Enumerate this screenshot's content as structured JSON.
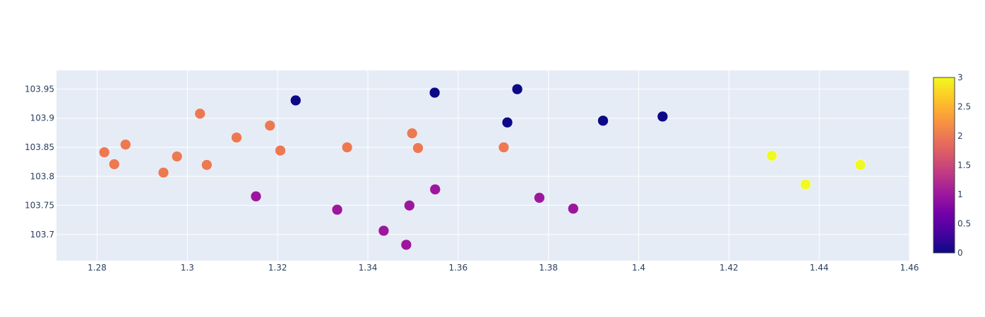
{
  "chart_data": {
    "type": "scatter",
    "xlim": [
      1.271,
      1.46
    ],
    "ylim": [
      103.655,
      103.982
    ],
    "grid": true,
    "x_ticks": [
      "1.28",
      "1.3",
      "1.32",
      "1.34",
      "1.36",
      "1.38",
      "1.4",
      "1.42",
      "1.44",
      "1.46"
    ],
    "y_ticks": [
      "103.7",
      "103.75",
      "103.8",
      "103.85",
      "103.9",
      "103.95"
    ],
    "colorbar": {
      "range": [
        0,
        3
      ],
      "ticks": [
        "0",
        "0.5",
        "1",
        "1.5",
        "2",
        "2.5",
        "3"
      ],
      "colorscale": [
        "#0d0887",
        "#46039f",
        "#7201a8",
        "#9c179e",
        "#bd3786",
        "#d8576b",
        "#ed7953",
        "#fb9f3a",
        "#fdca26",
        "#f0f921"
      ]
    },
    "points": [
      {
        "x": 1.2816,
        "y": 103.8413,
        "c": 2
      },
      {
        "x": 1.2838,
        "y": 103.8208,
        "c": 2
      },
      {
        "x": 1.2863,
        "y": 103.8546,
        "c": 2
      },
      {
        "x": 1.2947,
        "y": 103.8064,
        "c": 2
      },
      {
        "x": 1.2977,
        "y": 103.8341,
        "c": 2
      },
      {
        "x": 1.3028,
        "y": 103.9077,
        "c": 2
      },
      {
        "x": 1.3043,
        "y": 103.8196,
        "c": 2
      },
      {
        "x": 1.3109,
        "y": 103.8667,
        "c": 2
      },
      {
        "x": 1.3183,
        "y": 103.8872,
        "c": 2
      },
      {
        "x": 1.3206,
        "y": 103.8443,
        "c": 2
      },
      {
        "x": 1.3354,
        "y": 103.8498,
        "c": 2
      },
      {
        "x": 1.3498,
        "y": 103.8739,
        "c": 2
      },
      {
        "x": 1.3511,
        "y": 103.8486,
        "c": 2
      },
      {
        "x": 1.3701,
        "y": 103.8498,
        "c": 2
      },
      {
        "x": 1.324,
        "y": 103.9305,
        "c": 0
      },
      {
        "x": 1.3548,
        "y": 103.9438,
        "c": 0
      },
      {
        "x": 1.3731,
        "y": 103.9498,
        "c": 0
      },
      {
        "x": 1.3709,
        "y": 103.8926,
        "c": 0
      },
      {
        "x": 1.3921,
        "y": 103.8956,
        "c": 0
      },
      {
        "x": 1.4053,
        "y": 103.9028,
        "c": 0
      },
      {
        "x": 1.3152,
        "y": 103.7655,
        "c": 1
      },
      {
        "x": 1.3332,
        "y": 103.7426,
        "c": 1
      },
      {
        "x": 1.3435,
        "y": 103.7064,
        "c": 1
      },
      {
        "x": 1.3485,
        "y": 103.6823,
        "c": 1
      },
      {
        "x": 1.3492,
        "y": 103.7498,
        "c": 1
      },
      {
        "x": 1.3549,
        "y": 103.7775,
        "c": 1
      },
      {
        "x": 1.378,
        "y": 103.7631,
        "c": 1
      },
      {
        "x": 1.3855,
        "y": 103.7444,
        "c": 1
      },
      {
        "x": 1.4295,
        "y": 103.8353,
        "c": 3
      },
      {
        "x": 1.437,
        "y": 103.786,
        "c": 3
      },
      {
        "x": 1.4491,
        "y": 103.8196,
        "c": 3
      }
    ]
  }
}
